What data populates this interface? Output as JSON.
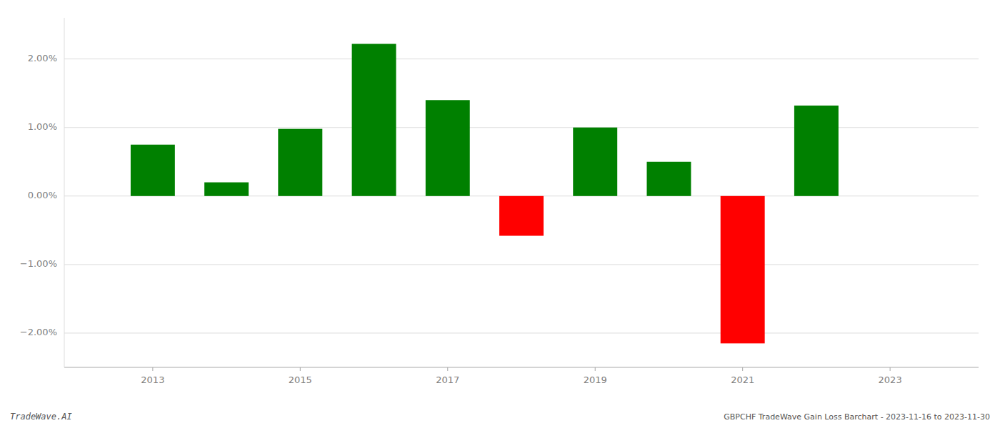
{
  "chart_data": {
    "type": "bar",
    "x": [
      2013,
      2014,
      2015,
      2016,
      2017,
      2018,
      2019,
      2020,
      2021,
      2022
    ],
    "values": [
      0.75,
      0.2,
      0.98,
      2.22,
      1.4,
      -0.58,
      1.0,
      0.5,
      -2.15,
      1.32
    ],
    "colors": [
      "#008000",
      "#008000",
      "#008000",
      "#008000",
      "#008000",
      "#ff0000",
      "#008000",
      "#008000",
      "#ff0000",
      "#008000"
    ],
    "xlim": [
      2011.8,
      2024.2
    ],
    "xticks": [
      2013,
      2015,
      2017,
      2019,
      2021,
      2023
    ],
    "ylim": [
      -2.5,
      2.6
    ],
    "yticks": [
      {
        "value": -2.0,
        "label": "−2.00%"
      },
      {
        "value": -1.0,
        "label": "−1.00%"
      },
      {
        "value": 0.0,
        "label": "0.00%"
      },
      {
        "value": 1.0,
        "label": "1.00%"
      },
      {
        "value": 2.0,
        "label": "2.00%"
      }
    ],
    "grid": true,
    "annotations": [
      "TradeWave.AI",
      "GBPCHF TradeWave Gain Loss Barchart - 2023-11-16 to 2023-11-30"
    ]
  }
}
